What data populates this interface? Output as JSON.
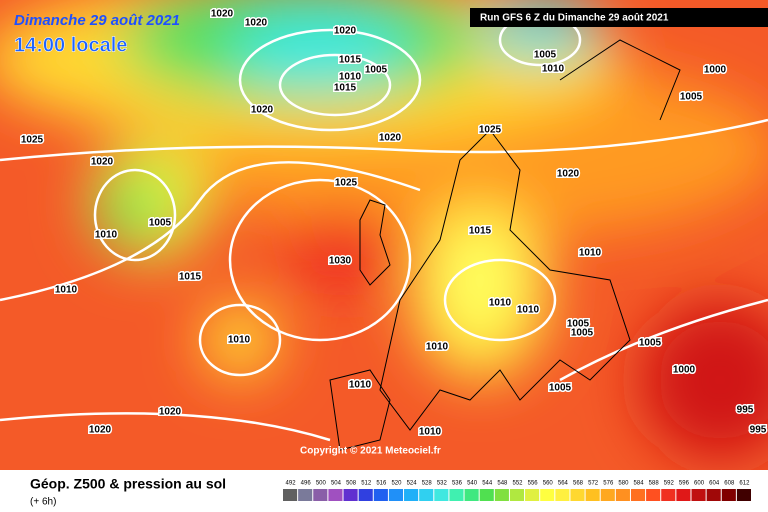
{
  "header": {
    "date": "Dimanche 29 août 2021",
    "time": "14:00 locale",
    "run": "Run GFS 6 Z du Dimanche 29 août 2021"
  },
  "map": {
    "isobar_labels": [
      1020,
      1020,
      1020,
      1005,
      1010,
      1000,
      1015,
      1010,
      1005,
      1015,
      1020,
      1025,
      1020,
      1025,
      1020,
      1005,
      1025,
      1020,
      1010,
      1005,
      1015,
      1030,
      1010,
      1015,
      1010,
      1010,
      1010,
      1005,
      1005,
      1010,
      1010,
      1005,
      1000,
      1010,
      1005,
      995,
      995,
      1020,
      1020,
      1010
    ],
    "copyright": "Copyright © 2021 Meteociel.fr"
  },
  "footer": {
    "title": "Géop. Z500 & pression au sol",
    "subtitle": "(+ 6h)"
  },
  "legend": {
    "ticks": [
      492,
      496,
      500,
      504,
      508,
      512,
      516,
      520,
      524,
      528,
      532,
      536,
      540,
      544,
      548,
      552,
      556,
      560,
      564,
      568,
      572,
      576,
      580,
      584,
      588,
      592,
      596,
      600,
      604,
      608,
      612
    ],
    "colors": [
      "#606060",
      "#7a7a9a",
      "#8a5fa8",
      "#a050c0",
      "#6030d0",
      "#3040e0",
      "#2060f0",
      "#2090f8",
      "#20b0f8",
      "#30d0f0",
      "#40e8e0",
      "#40f0b0",
      "#40e880",
      "#50e050",
      "#80e040",
      "#b0e840",
      "#e0f040",
      "#ffff40",
      "#fff040",
      "#ffd830",
      "#ffc020",
      "#ffa820",
      "#ff9020",
      "#ff7020",
      "#ff5020",
      "#f03020",
      "#e01818",
      "#c01010",
      "#a00808",
      "#800000",
      "#400000"
    ]
  }
}
